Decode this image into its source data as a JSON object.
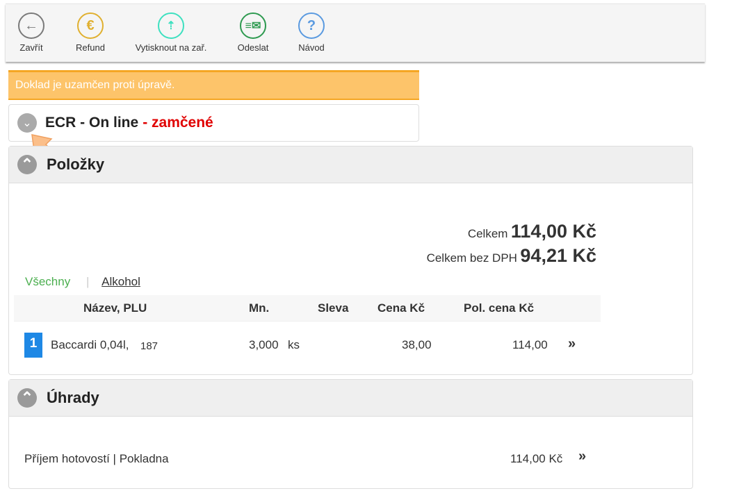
{
  "toolbar": {
    "items": [
      {
        "label": "Zavřít",
        "icon": "arrow-left-icon",
        "color": "#7a7a7a"
      },
      {
        "label": "Refund",
        "icon": "euro-refund-icon",
        "color": "#e0b030"
      },
      {
        "label": "Vytisknout na zař.",
        "icon": "print-device-icon",
        "color": "#3ee0c0"
      },
      {
        "label": "Odeslat",
        "icon": "send-mail-icon",
        "color": "#2e9a50"
      },
      {
        "label": "Návod",
        "icon": "help-icon",
        "color": "#5a9ae0"
      }
    ]
  },
  "warning": "Doklad je uzamčen proti úpravě.",
  "ecr": {
    "title": "ECR - On line",
    "status": "- zamčené",
    "status_color": "#e00000"
  },
  "items_panel": {
    "title": "Položky",
    "total_label": "Celkem",
    "total": "114,00 Kč",
    "net_label": "Celkem bez DPH",
    "net": "94,21 Kč",
    "filters": [
      {
        "label": "Všechny",
        "active": true
      },
      {
        "label": "Alkohol",
        "active": false
      }
    ],
    "columns": [
      "Název, PLU",
      "Mn.",
      "Sleva",
      "Cena Kč",
      "Pol. cena Kč"
    ],
    "rows": [
      {
        "index": "1",
        "name": "Baccardi 0,04l,",
        "plu": "187",
        "qty": "3,000",
        "unit": "ks",
        "discount": "",
        "price": "38,00",
        "total": "114,00"
      }
    ]
  },
  "payments_panel": {
    "title": "Úhrady",
    "rows": [
      {
        "label": "Příjem hotovostí | Pokladna",
        "amount": "114,00 Kč"
      }
    ]
  },
  "colors": {
    "warning": "#fdc46a",
    "active_filter": "#4caf50",
    "row_index": "#1e88e5"
  }
}
